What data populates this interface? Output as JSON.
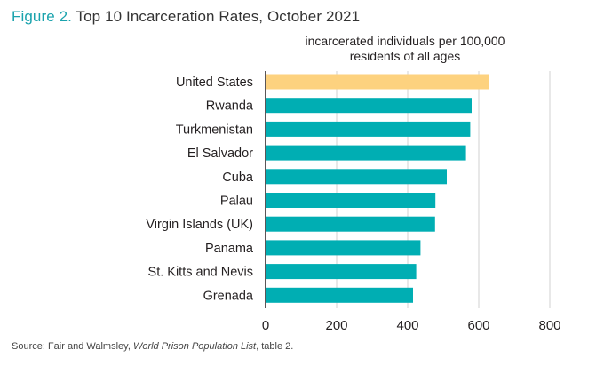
{
  "figure": {
    "label": "Figure 2.",
    "title": "Top 10 Incarceration Rates, October 2021"
  },
  "source": {
    "prefix": "Source: Fair and Walmsley, ",
    "italic": "World Prison Population List",
    "suffix": ", table 2."
  },
  "colors": {
    "highlight": "#fdd27f",
    "bar": "#00aeb3",
    "grid": "#d0d0d0",
    "title_accent": "#1aa3ad"
  },
  "chart_data": {
    "type": "bar",
    "orientation": "horizontal",
    "title": "Top 10 Incarceration Rates, October 2021",
    "value_label": "incarcerated individuals per 100,000 residents of all ages",
    "categories": [
      "United States",
      "Rwanda",
      "Turkmenistan",
      "El Salvador",
      "Cuba",
      "Palau",
      "Virgin Islands (UK)",
      "Panama",
      "St. Kitts and Nevis",
      "Grenada"
    ],
    "values": [
      629,
      580,
      576,
      564,
      510,
      478,
      477,
      436,
      424,
      415
    ],
    "highlight_index": 0,
    "xlim": [
      0,
      800
    ],
    "xticks": [
      0,
      200,
      400,
      600,
      800
    ],
    "grid": "vertical"
  }
}
